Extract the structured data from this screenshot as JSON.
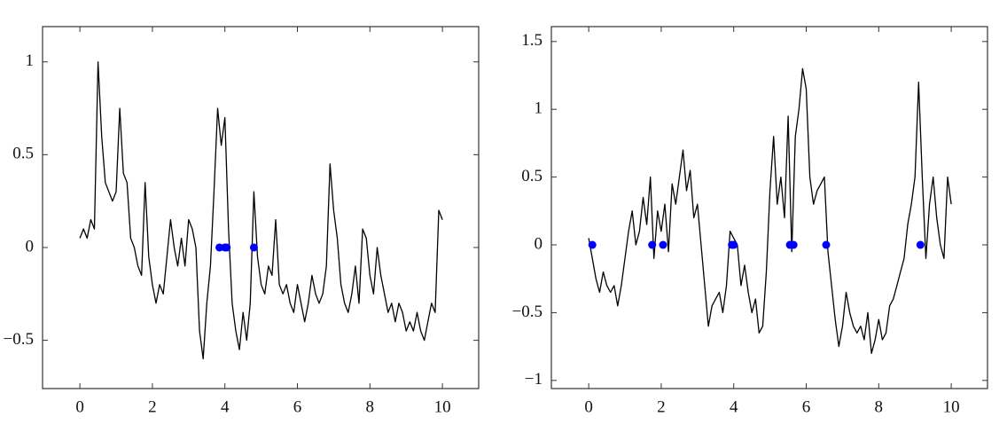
{
  "chart_data": [
    {
      "type": "line",
      "xlim": [
        -1.03,
        11.0
      ],
      "ylim": [
        -0.76,
        1.19
      ],
      "xticks": [
        0,
        2,
        4,
        6,
        8,
        10
      ],
      "yticks": [
        {
          "value": -0.5,
          "label": "−0.5"
        },
        0,
        0.5,
        1
      ],
      "series": [
        {
          "type": "line",
          "color": "#000000",
          "x": [
            0,
            0.1,
            0.2,
            0.3,
            0.4,
            0.5,
            0.6,
            0.7,
            0.8,
            0.9,
            1,
            1.1,
            1.2,
            1.3,
            1.4,
            1.5,
            1.6,
            1.7,
            1.8,
            1.9,
            2,
            2.1,
            2.2,
            2.3,
            2.4,
            2.5,
            2.6,
            2.7,
            2.8,
            2.9,
            3,
            3.1,
            3.2,
            3.3,
            3.4,
            3.5,
            3.6,
            3.7,
            3.8,
            3.9,
            4,
            4.1,
            4.2,
            4.3,
            4.4,
            4.5,
            4.6,
            4.7,
            4.8,
            4.9,
            5,
            5.1,
            5.2,
            5.3,
            5.4,
            5.5,
            5.6,
            5.7,
            5.8,
            5.9,
            6,
            6.1,
            6.2,
            6.3,
            6.4,
            6.5,
            6.6,
            6.7,
            6.8,
            6.9,
            7,
            7.1,
            7.2,
            7.3,
            7.4,
            7.5,
            7.6,
            7.7,
            7.8,
            7.9,
            8,
            8.1,
            8.2,
            8.3,
            8.4,
            8.5,
            8.6,
            8.7,
            8.8,
            8.9,
            9,
            9.1,
            9.2,
            9.3,
            9.4,
            9.5,
            9.6,
            9.7,
            9.8,
            9.9,
            10
          ],
          "values": [
            0.05,
            0.1,
            0.05,
            0.15,
            0.1,
            1.0,
            0.6,
            0.35,
            0.3,
            0.25,
            0.3,
            0.75,
            0.4,
            0.35,
            0.05,
            0.0,
            -0.1,
            -0.15,
            0.35,
            -0.05,
            -0.2,
            -0.3,
            -0.2,
            -0.25,
            -0.05,
            0.15,
            0.0,
            -0.1,
            0.05,
            -0.1,
            0.15,
            0.1,
            0.0,
            -0.45,
            -0.6,
            -0.3,
            -0.1,
            0.3,
            0.75,
            0.55,
            0.7,
            0.1,
            -0.3,
            -0.45,
            -0.55,
            -0.35,
            -0.5,
            -0.3,
            0.3,
            -0.05,
            -0.2,
            -0.25,
            -0.1,
            -0.15,
            0.15,
            -0.2,
            -0.25,
            -0.2,
            -0.3,
            -0.35,
            -0.2,
            -0.3,
            -0.4,
            -0.3,
            -0.15,
            -0.25,
            -0.3,
            -0.25,
            -0.1,
            0.45,
            0.2,
            0.05,
            -0.2,
            -0.3,
            -0.35,
            -0.25,
            -0.1,
            -0.3,
            0.1,
            0.05,
            -0.15,
            -0.25,
            0.0,
            -0.15,
            -0.25,
            -0.35,
            -0.3,
            -0.4,
            -0.3,
            -0.35,
            -0.45,
            -0.4,
            -0.45,
            -0.35,
            -0.45,
            -0.5,
            -0.4,
            -0.3,
            -0.35,
            0.2,
            0.15
          ]
        },
        {
          "type": "scatter",
          "color": "#0000ff",
          "x": [
            3.85,
            4.0,
            4.05,
            4.8
          ],
          "values": [
            0,
            0,
            0,
            0
          ]
        }
      ]
    },
    {
      "type": "line",
      "xlim": [
        -1.03,
        11.0
      ],
      "ylim": [
        -1.06,
        1.61
      ],
      "xticks": [
        0,
        2,
        4,
        6,
        8,
        10
      ],
      "yticks": [
        {
          "value": -1,
          "label": "−1"
        },
        {
          "value": -0.5,
          "label": "−0.5"
        },
        0,
        0.5,
        1,
        1.5
      ],
      "series": [
        {
          "type": "line",
          "color": "#000000",
          "x": [
            0,
            0.1,
            0.2,
            0.3,
            0.4,
            0.5,
            0.6,
            0.7,
            0.8,
            0.9,
            1,
            1.1,
            1.2,
            1.3,
            1.4,
            1.5,
            1.6,
            1.7,
            1.8,
            1.9,
            2,
            2.1,
            2.2,
            2.3,
            2.4,
            2.5,
            2.6,
            2.7,
            2.8,
            2.9,
            3,
            3.1,
            3.2,
            3.3,
            3.4,
            3.5,
            3.6,
            3.7,
            3.8,
            3.9,
            4,
            4.1,
            4.2,
            4.3,
            4.4,
            4.5,
            4.6,
            4.7,
            4.8,
            4.9,
            5,
            5.1,
            5.2,
            5.3,
            5.4,
            5.5,
            5.6,
            5.7,
            5.8,
            5.9,
            6,
            6.1,
            6.2,
            6.3,
            6.4,
            6.5,
            6.6,
            6.7,
            6.8,
            6.9,
            7,
            7.1,
            7.2,
            7.3,
            7.4,
            7.5,
            7.6,
            7.7,
            7.8,
            7.9,
            8,
            8.1,
            8.2,
            8.3,
            8.4,
            8.5,
            8.6,
            8.7,
            8.8,
            8.9,
            9,
            9.1,
            9.2,
            9.3,
            9.4,
            9.5,
            9.6,
            9.7,
            9.8,
            9.9,
            10
          ],
          "values": [
            0.05,
            -0.1,
            -0.25,
            -0.35,
            -0.2,
            -0.3,
            -0.35,
            -0.3,
            -0.45,
            -0.3,
            -0.1,
            0.1,
            0.25,
            0.0,
            0.1,
            0.35,
            0.15,
            0.5,
            -0.1,
            0.25,
            0.1,
            0.3,
            -0.05,
            0.45,
            0.3,
            0.5,
            0.7,
            0.4,
            0.55,
            0.2,
            0.3,
            0.0,
            -0.3,
            -0.6,
            -0.45,
            -0.4,
            -0.35,
            -0.5,
            -0.3,
            0.1,
            0.05,
            0.0,
            -0.3,
            -0.15,
            -0.35,
            -0.5,
            -0.4,
            -0.65,
            -0.6,
            -0.2,
            0.4,
            0.8,
            0.3,
            0.5,
            0.2,
            0.95,
            -0.05,
            0.8,
            1.0,
            1.3,
            1.15,
            0.5,
            0.3,
            0.4,
            0.45,
            0.5,
            -0.05,
            -0.3,
            -0.55,
            -0.75,
            -0.6,
            -0.35,
            -0.5,
            -0.6,
            -0.65,
            -0.6,
            -0.7,
            -0.5,
            -0.8,
            -0.7,
            -0.55,
            -0.7,
            -0.65,
            -0.45,
            -0.4,
            -0.3,
            -0.2,
            -0.1,
            0.15,
            0.3,
            0.5,
            1.2,
            0.5,
            -0.1,
            0.3,
            0.5,
            0.2,
            0.0,
            -0.1,
            0.5,
            0.3
          ]
        },
        {
          "type": "scatter",
          "color": "#0000ff",
          "x": [
            0.1,
            1.75,
            2.05,
            3.95,
            4.0,
            5.55,
            5.65,
            6.55,
            9.15
          ],
          "values": [
            0,
            0,
            0,
            0,
            0,
            0,
            0,
            0,
            0
          ]
        }
      ]
    }
  ]
}
